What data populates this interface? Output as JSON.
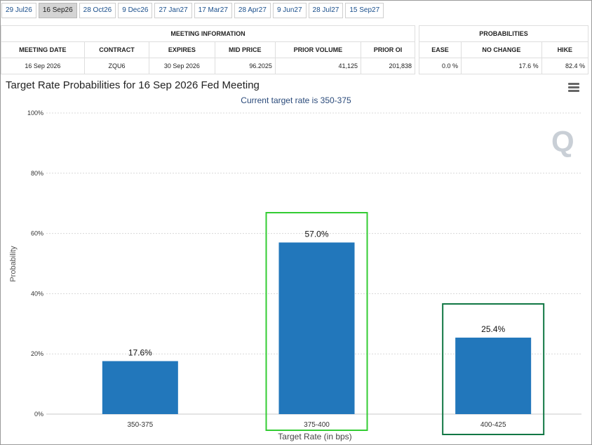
{
  "tabs": [
    "29 Jul26",
    "16 Sep26",
    "28 Oct26",
    "9 Dec26",
    "27 Jan27",
    "17 Mar27",
    "28 Apr27",
    "9 Jun27",
    "28 Jul27",
    "15 Sep27"
  ],
  "active_tab": "16 Sep26",
  "meeting_info": {
    "header": "MEETING INFORMATION",
    "columns": [
      "MEETING DATE",
      "CONTRACT",
      "EXPIRES",
      "MID PRICE",
      "PRIOR VOLUME",
      "PRIOR OI"
    ],
    "row": [
      "16 Sep 2026",
      "ZQU6",
      "30 Sep 2026",
      "96.2025",
      "41,125",
      "201,838"
    ]
  },
  "probabilities": {
    "header": "PROBABILITIES",
    "columns": [
      "EASE",
      "NO CHANGE",
      "HIKE"
    ],
    "row": [
      "0.0 %",
      "17.6 %",
      "82.4 %"
    ]
  },
  "chart_data": {
    "type": "bar",
    "title": "Target Rate Probabilities for 16 Sep 2026 Fed Meeting",
    "subtitle": "Current target rate is 350-375",
    "xlabel": "Target Rate (in bps)",
    "ylabel": "Probability",
    "categories": [
      "350-375",
      "375-400",
      "400-425"
    ],
    "values": [
      17.6,
      57.0,
      25.4
    ],
    "data_labels": [
      "17.6%",
      "57.0%",
      "25.4%"
    ],
    "yticks": [
      "0%",
      "20%",
      "40%",
      "60%",
      "80%",
      "100%"
    ],
    "ylim": [
      0,
      100
    ],
    "grid": true,
    "bar_color": "#2277bb",
    "highlight_colors": [
      "#33cc33",
      "#117744"
    ]
  },
  "watermark": "Q"
}
